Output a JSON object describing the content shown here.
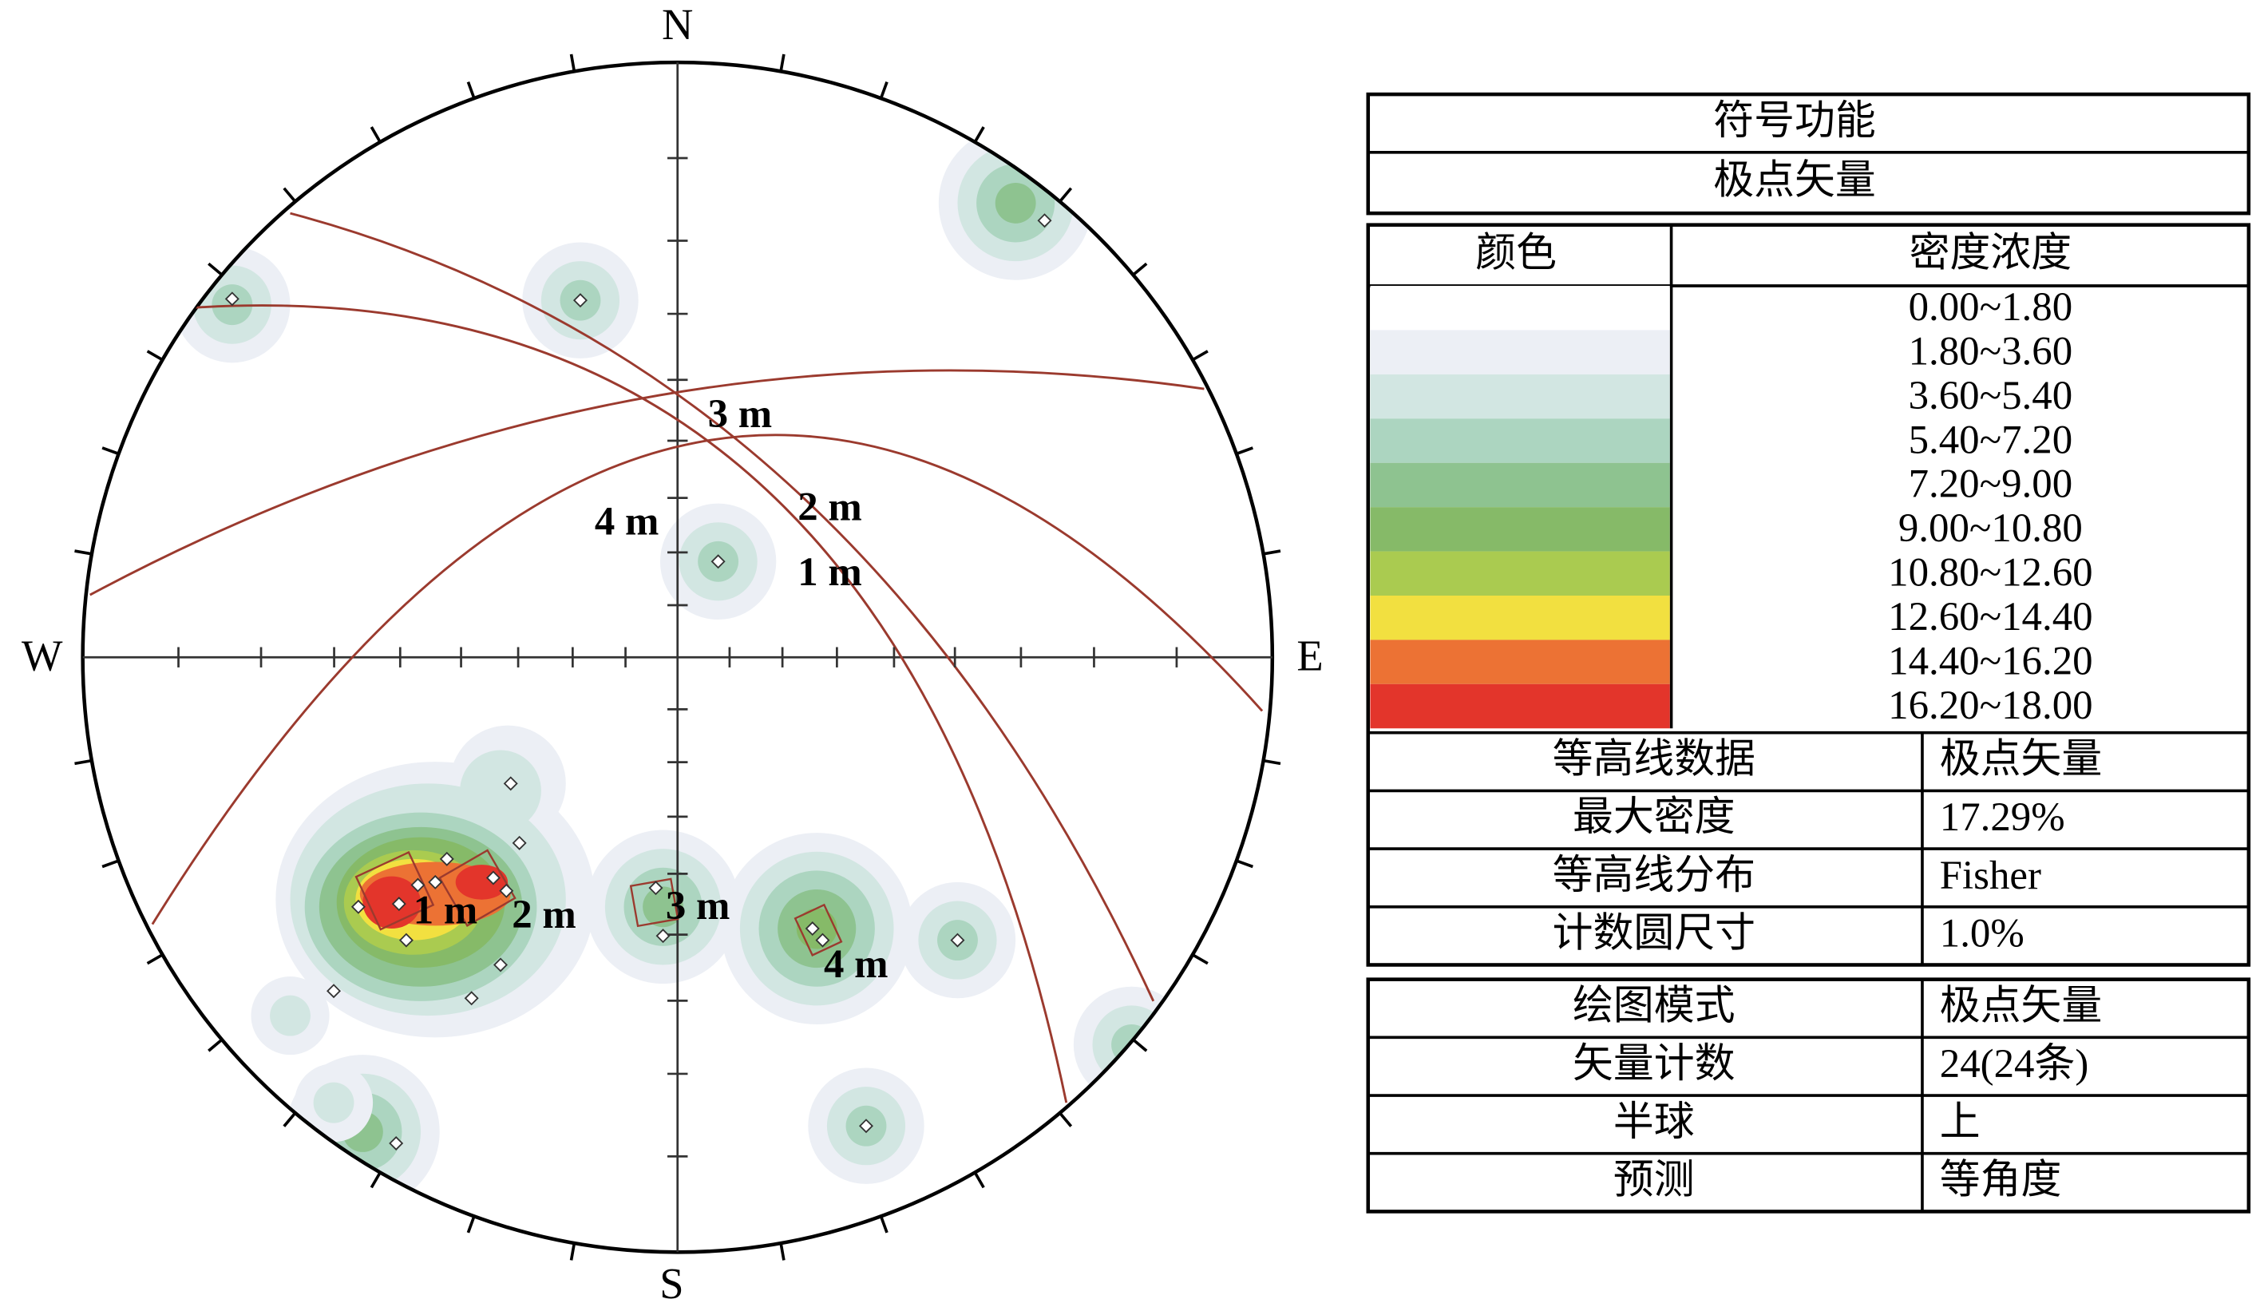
{
  "compass": {
    "north": "N",
    "south": "S",
    "west": "W",
    "east": "E"
  },
  "plane_labels": [
    "1 m",
    "2 m",
    "3 m",
    "4 m"
  ],
  "legend": {
    "title": "符号功能",
    "subtitle": "极点矢量",
    "color_header": "颜色",
    "range_header": "密度浓度",
    "ranges": [
      {
        "label": "0.00~1.80",
        "color": "#ffffff"
      },
      {
        "label": "1.80~3.60",
        "color": "#eceff5"
      },
      {
        "label": "3.60~5.40",
        "color": "#d2e6e2"
      },
      {
        "label": "5.40~7.20",
        "color": "#acd5c0"
      },
      {
        "label": "7.20~9.00",
        "color": "#8ec390"
      },
      {
        "label": "9.00~10.80",
        "color": "#86ba68"
      },
      {
        "label": "10.80~12.60",
        "color": "#aacb50"
      },
      {
        "label": "12.60~14.40",
        "color": "#f2e040"
      },
      {
        "label": "14.40~16.20",
        "color": "#ec7234"
      },
      {
        "label": "16.20~18.00",
        "color": "#e3352b"
      }
    ]
  },
  "contour_info": [
    [
      "等高线数据",
      "极点矢量"
    ],
    [
      "最大密度",
      "17.29%"
    ],
    [
      "等高线分布",
      "Fisher"
    ],
    [
      "计数圆尺寸",
      "1.0%"
    ]
  ],
  "plot_info": [
    [
      "绘图模式",
      "极点矢量"
    ],
    [
      "矢量计数",
      "24(24条)"
    ],
    [
      "半球",
      "上"
    ],
    [
      "预测",
      "等角度"
    ]
  ]
}
